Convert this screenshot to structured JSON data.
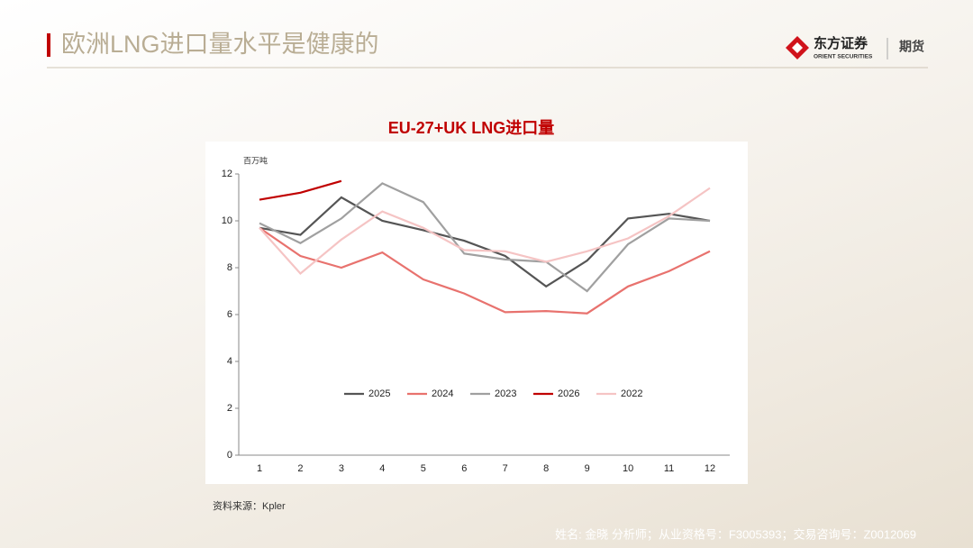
{
  "header": {
    "title": "欧洲LNG进口量水平是健康的",
    "brand": "东方证券",
    "brand_en": "ORIENT SECURITIES",
    "division": "期货"
  },
  "chart_data": {
    "type": "line",
    "title": "EU-27+UK LNG进口量",
    "y_label": "百万吨",
    "categories": [
      "1",
      "2",
      "3",
      "4",
      "5",
      "6",
      "7",
      "8",
      "9",
      "10",
      "11",
      "12"
    ],
    "series": [
      {
        "name": "2025",
        "color": "#555555",
        "values": [
          9.7,
          9.4,
          11.0,
          10.0,
          9.6,
          9.15,
          8.5,
          7.2,
          8.3,
          10.1,
          10.3,
          10.0
        ]
      },
      {
        "name": "2024",
        "color": "#e8726e",
        "values": [
          9.7,
          8.5,
          8.0,
          8.65,
          7.5,
          6.9,
          6.1,
          6.15,
          6.05,
          7.2,
          7.85,
          8.7
        ]
      },
      {
        "name": "2023",
        "color": "#a0a0a0",
        "values": [
          9.9,
          9.05,
          10.1,
          11.6,
          10.8,
          8.6,
          8.35,
          8.25,
          7.0,
          9.0,
          10.1,
          10.0
        ]
      },
      {
        "name": "2026",
        "color": "#c00000",
        "values": [
          10.9,
          11.2,
          11.7,
          null,
          null,
          null,
          null,
          null,
          null,
          null,
          null,
          null
        ]
      },
      {
        "name": "2022",
        "color": "#f5c4c4",
        "values": [
          9.7,
          7.75,
          9.2,
          10.4,
          9.7,
          8.75,
          8.7,
          8.25,
          8.7,
          9.25,
          10.2,
          11.4
        ]
      }
    ],
    "ylim": [
      0,
      12
    ],
    "yticks": [
      0,
      2,
      4,
      6,
      8,
      10,
      12
    ],
    "grid": false,
    "legend": "inside-bottom"
  },
  "source": "资料来源：Kpler",
  "footer": "姓名: 金晓 分析师；从业资格号：F3005393；交易咨询号：Z0012069"
}
